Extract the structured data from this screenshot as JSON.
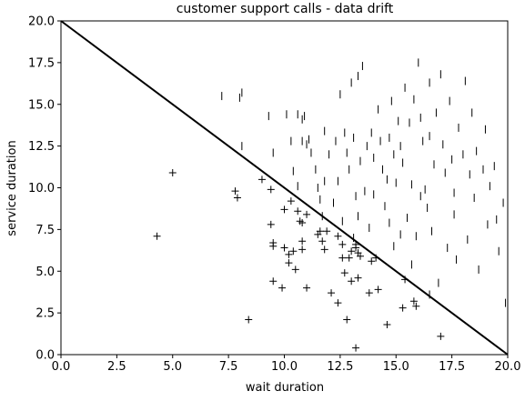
{
  "chart_data": {
    "type": "scatter",
    "title": "customer support calls - data drift",
    "xlabel": "wait duration",
    "ylabel": "service duration",
    "xlim": [
      0,
      20
    ],
    "ylim": [
      0,
      20
    ],
    "xticks": [
      0,
      2.5,
      5,
      7.5,
      10,
      12.5,
      15,
      17.5,
      20
    ],
    "yticks": [
      0,
      2.5,
      5,
      7.5,
      10,
      12.5,
      15,
      17.5,
      20
    ],
    "xtick_labels": [
      "0.0",
      "2.5",
      "5.0",
      "7.5",
      "10.0",
      "12.5",
      "15.0",
      "17.5",
      "20.0"
    ],
    "ytick_labels": [
      "0.0",
      "2.5",
      "5.0",
      "7.5",
      "10.0",
      "12.5",
      "15.0",
      "17.5",
      "20.0"
    ],
    "grid": false,
    "boundary_line": {
      "x": [
        0,
        20
      ],
      "y": [
        20,
        0
      ]
    },
    "series": [
      {
        "marker": "+",
        "points": [
          [
            4.3,
            7.1
          ],
          [
            5.0,
            10.9
          ],
          [
            7.8,
            9.8
          ],
          [
            7.9,
            9.4
          ],
          [
            8.4,
            2.1
          ],
          [
            9.0,
            10.5
          ],
          [
            9.4,
            9.9
          ],
          [
            9.4,
            7.8
          ],
          [
            9.5,
            6.7
          ],
          [
            9.5,
            6.5
          ],
          [
            9.5,
            4.4
          ],
          [
            9.9,
            4.0
          ],
          [
            10.0,
            8.7
          ],
          [
            10.0,
            6.4
          ],
          [
            10.2,
            6.0
          ],
          [
            10.2,
            5.5
          ],
          [
            10.3,
            9.2
          ],
          [
            10.4,
            6.2
          ],
          [
            10.5,
            5.1
          ],
          [
            10.6,
            8.6
          ],
          [
            10.7,
            8.0
          ],
          [
            10.8,
            7.9
          ],
          [
            10.8,
            6.8
          ],
          [
            10.8,
            6.3
          ],
          [
            11.0,
            8.4
          ],
          [
            11.0,
            4.0
          ],
          [
            11.5,
            7.2
          ],
          [
            11.6,
            7.4
          ],
          [
            11.7,
            6.8
          ],
          [
            11.8,
            6.3
          ],
          [
            11.9,
            7.4
          ],
          [
            12.1,
            3.7
          ],
          [
            12.4,
            7.1
          ],
          [
            12.4,
            3.1
          ],
          [
            12.6,
            6.6
          ],
          [
            12.6,
            5.8
          ],
          [
            12.7,
            4.9
          ],
          [
            12.8,
            2.1
          ],
          [
            12.9,
            5.8
          ],
          [
            13.0,
            6.2
          ],
          [
            13.0,
            4.4
          ],
          [
            13.2,
            6.6
          ],
          [
            13.2,
            6.4
          ],
          [
            13.3,
            6.1
          ],
          [
            13.3,
            4.6
          ],
          [
            13.4,
            5.9
          ],
          [
            13.8,
            3.7
          ],
          [
            13.9,
            5.6
          ],
          [
            14.1,
            5.8
          ],
          [
            14.2,
            3.9
          ],
          [
            14.6,
            1.8
          ],
          [
            15.3,
            2.8
          ],
          [
            15.4,
            4.5
          ],
          [
            15.8,
            3.2
          ],
          [
            15.9,
            2.9
          ],
          [
            17.0,
            1.1
          ],
          [
            13.2,
            0.4
          ]
        ]
      },
      {
        "marker": "|",
        "points": [
          [
            7.2,
            15.5
          ],
          [
            8.0,
            15.4
          ],
          [
            8.1,
            15.7
          ],
          [
            8.1,
            12.5
          ],
          [
            9.3,
            14.3
          ],
          [
            9.5,
            12.1
          ],
          [
            10.1,
            14.4
          ],
          [
            10.3,
            12.8
          ],
          [
            10.4,
            11.0
          ],
          [
            10.6,
            14.4
          ],
          [
            10.8,
            14.1
          ],
          [
            10.8,
            12.8
          ],
          [
            10.9,
            14.3
          ],
          [
            11.0,
            12.6
          ],
          [
            11.2,
            12.1
          ],
          [
            11.4,
            11.1
          ],
          [
            11.5,
            10.0
          ],
          [
            11.6,
            9.3
          ],
          [
            11.8,
            13.4
          ],
          [
            11.8,
            10.4
          ],
          [
            12.3,
            12.8
          ],
          [
            12.4,
            10.4
          ],
          [
            12.5,
            15.6
          ],
          [
            12.7,
            13.3
          ],
          [
            12.8,
            12.1
          ],
          [
            12.9,
            11.1
          ],
          [
            13.0,
            16.3
          ],
          [
            13.1,
            13.0
          ],
          [
            13.2,
            9.5
          ],
          [
            13.3,
            16.7
          ],
          [
            13.4,
            11.6
          ],
          [
            13.5,
            17.3
          ],
          [
            13.6,
            9.8
          ],
          [
            13.7,
            12.5
          ],
          [
            13.9,
            13.3
          ],
          [
            14.0,
            11.8
          ],
          [
            14.2,
            14.7
          ],
          [
            14.3,
            12.8
          ],
          [
            14.4,
            11.1
          ],
          [
            14.6,
            10.5
          ],
          [
            14.7,
            13.0
          ],
          [
            14.8,
            15.2
          ],
          [
            14.9,
            12.0
          ],
          [
            15.0,
            10.3
          ],
          [
            15.1,
            14.0
          ],
          [
            15.2,
            12.5
          ],
          [
            15.3,
            11.5
          ],
          [
            15.4,
            16.0
          ],
          [
            15.6,
            13.9
          ],
          [
            15.7,
            10.2
          ],
          [
            15.8,
            15.3
          ],
          [
            16.0,
            17.5
          ],
          [
            16.1,
            14.2
          ],
          [
            16.2,
            12.8
          ],
          [
            16.3,
            9.9
          ],
          [
            16.5,
            13.1
          ],
          [
            16.5,
            16.3
          ],
          [
            16.7,
            11.4
          ],
          [
            16.8,
            14.5
          ],
          [
            17.0,
            16.8
          ],
          [
            17.1,
            12.6
          ],
          [
            17.2,
            10.9
          ],
          [
            17.4,
            15.2
          ],
          [
            17.5,
            11.7
          ],
          [
            17.6,
            9.7
          ],
          [
            17.8,
            13.6
          ],
          [
            18.0,
            12.0
          ],
          [
            18.1,
            16.4
          ],
          [
            18.3,
            10.8
          ],
          [
            18.4,
            14.5
          ],
          [
            18.6,
            12.2
          ],
          [
            18.9,
            11.1
          ],
          [
            19.0,
            13.5
          ],
          [
            19.2,
            10.1
          ],
          [
            19.5,
            8.1
          ],
          [
            19.8,
            9.1
          ],
          [
            20.0,
            12.1
          ],
          [
            19.9,
            3.1
          ],
          [
            20.0,
            17.5
          ],
          [
            19.6,
            6.2
          ],
          [
            10.6,
            10.1
          ],
          [
            11.7,
            8.3
          ],
          [
            12.6,
            8.0
          ],
          [
            13.3,
            8.3
          ],
          [
            13.8,
            7.6
          ],
          [
            14.5,
            8.9
          ],
          [
            15.2,
            7.2
          ],
          [
            15.7,
            5.4
          ],
          [
            16.6,
            7.4
          ],
          [
            17.3,
            6.4
          ],
          [
            17.7,
            5.7
          ],
          [
            18.2,
            6.9
          ],
          [
            18.7,
            5.1
          ],
          [
            19.1,
            7.8
          ],
          [
            16.9,
            4.3
          ],
          [
            16.5,
            3.6
          ],
          [
            14.9,
            6.5
          ],
          [
            15.5,
            8.2
          ],
          [
            16.1,
            9.5
          ],
          [
            17.6,
            8.4
          ],
          [
            12.2,
            9.1
          ],
          [
            13.1,
            7.0
          ],
          [
            14.0,
            9.6
          ],
          [
            14.7,
            7.9
          ],
          [
            15.9,
            7.1
          ],
          [
            16.4,
            8.8
          ],
          [
            18.5,
            9.4
          ],
          [
            19.4,
            11.3
          ],
          [
            12.0,
            12.0
          ],
          [
            11.1,
            12.9
          ]
        ]
      }
    ]
  }
}
